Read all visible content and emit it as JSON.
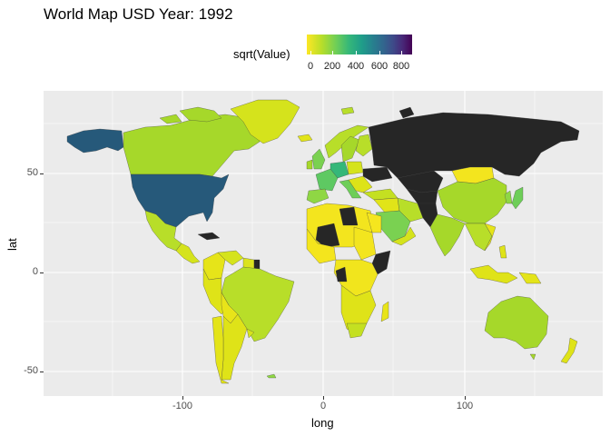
{
  "title": "World Map USD Year: 1992",
  "legend": {
    "title": "sqrt(Value)",
    "ticks": [
      "0",
      "200",
      "400",
      "600",
      "800"
    ],
    "scale": "viridis (reversed)"
  },
  "axes": {
    "xlabel": "long",
    "ylabel": "lat",
    "xticks": [
      "-100",
      "0",
      "100"
    ],
    "yticks": [
      "50",
      "0",
      "-50"
    ]
  },
  "chart_data": {
    "type": "heatmap",
    "title": "World Map USD Year: 1992",
    "xlabel": "long",
    "ylabel": "lat",
    "xlim": [
      -195,
      195
    ],
    "ylim": [
      -62,
      87
    ],
    "legend": "top",
    "colors": {
      "panel": "#ebebeb",
      "grid": "#ffffff",
      "missing": "#262626",
      "low": "#fde725",
      "high": "#440154"
    }
  }
}
